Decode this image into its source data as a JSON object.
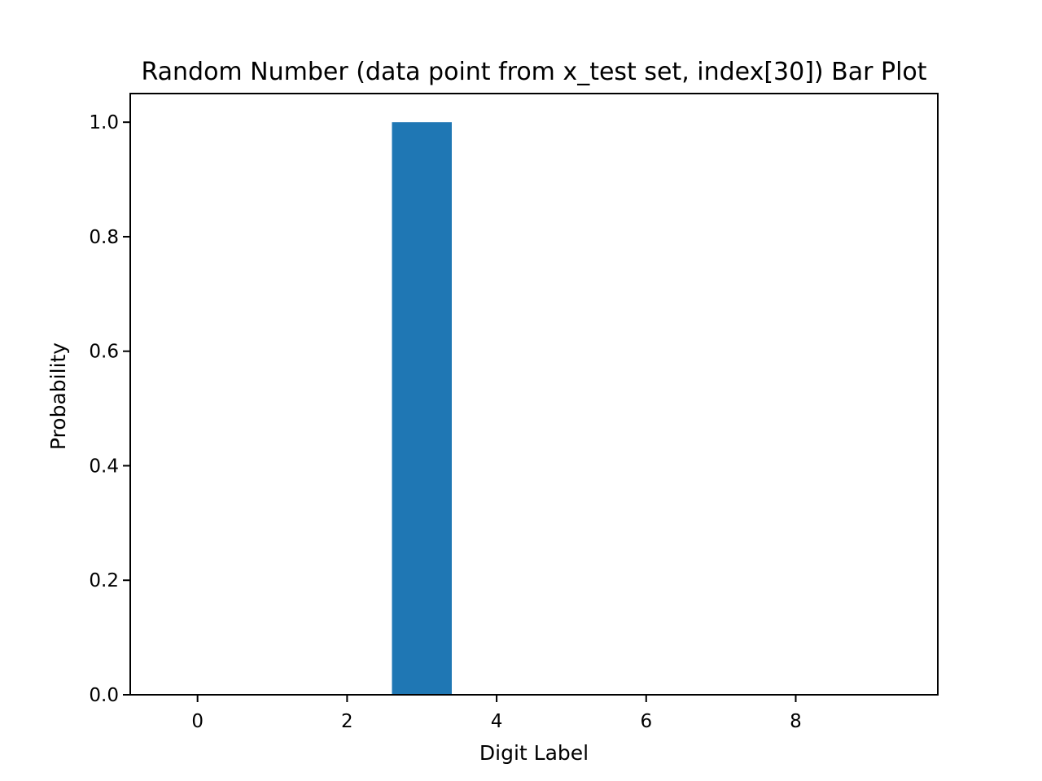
{
  "chart_data": {
    "type": "bar",
    "title": "Random Number (data point from x_test set, index[30]) Bar Plot",
    "xlabel": "Digit Label",
    "ylabel": "Probability",
    "x": [
      0,
      1,
      2,
      3,
      4,
      5,
      6,
      7,
      8,
      9
    ],
    "values": [
      0.0,
      0.0,
      0.0,
      1.0,
      0.0,
      0.0,
      0.0,
      0.0,
      0.0,
      0.0
    ],
    "xlim": [
      -0.9,
      9.9
    ],
    "ylim": [
      0,
      1.05
    ],
    "xticks": [
      0,
      2,
      4,
      6,
      8
    ],
    "xtick_labels": [
      "0",
      "2",
      "4",
      "6",
      "8"
    ],
    "yticks": [
      0.0,
      0.2,
      0.4,
      0.6,
      0.8,
      1.0
    ],
    "ytick_labels": [
      "0.0",
      "0.2",
      "0.4",
      "0.6",
      "0.8",
      "1.0"
    ],
    "bar_color": "#1f77b4",
    "grid": false,
    "legend": "none"
  }
}
